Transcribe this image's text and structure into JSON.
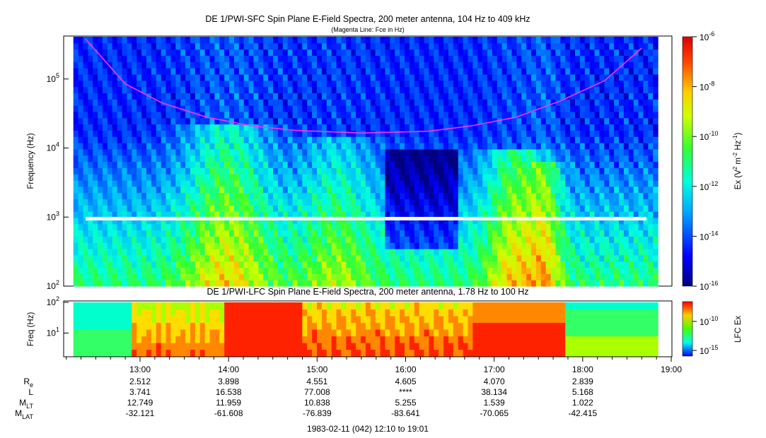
{
  "chart_data": [
    {
      "type": "heatmap",
      "panel": "SFC",
      "title": "DE 1/PWI-SFC  Spin Plane E-Field Spectra, 200 meter antenna, 104 Hz to 409 kHz",
      "subtitle": "(Magenta Line: Fce in Hz)",
      "ylabel": "Frequency (Hz)",
      "y_scale": "log",
      "ylim_hz": [
        100,
        409000
      ],
      "y_ticks": [
        {
          "value": 100,
          "base": "10",
          "exp": "2"
        },
        {
          "value": 1000,
          "base": "10",
          "exp": "3"
        },
        {
          "value": 10000,
          "base": "10",
          "exp": "4"
        },
        {
          "value": 100000,
          "base": "10",
          "exp": "5"
        }
      ],
      "colorbar": {
        "label_parts": [
          "Ex (V",
          "2",
          " m",
          "-2",
          " Hz",
          "-1",
          ")"
        ],
        "scale": "log",
        "range": [
          1e-16,
          1e-06
        ],
        "ticks": [
          {
            "value": 1e-06,
            "base": "10",
            "exp": "-6"
          },
          {
            "value": 1e-08,
            "base": "10",
            "exp": "-8"
          },
          {
            "value": 1e-10,
            "base": "10",
            "exp": "-10"
          },
          {
            "value": 1e-12,
            "base": "10",
            "exp": "-12"
          },
          {
            "value": 1e-14,
            "base": "10",
            "exp": "-14"
          },
          {
            "value": 1e-16,
            "base": "10",
            "exp": "-16"
          }
        ]
      },
      "fce_line": {
        "color": "#ff33ff",
        "points_hz": [
          {
            "t": "12:23",
            "f": 380000
          },
          {
            "t": "12:50",
            "f": 85000
          },
          {
            "t": "13:15",
            "f": 45000
          },
          {
            "t": "13:45",
            "f": 28000
          },
          {
            "t": "14:15",
            "f": 21000
          },
          {
            "t": "14:45",
            "f": 18000
          },
          {
            "t": "15:30",
            "f": 16500
          },
          {
            "t": "16:15",
            "f": 17500
          },
          {
            "t": "16:45",
            "f": 21000
          },
          {
            "t": "17:15",
            "f": 28000
          },
          {
            "t": "17:45",
            "f": 48000
          },
          {
            "t": "18:15",
            "f": 95000
          },
          {
            "t": "18:40",
            "f": 280000
          }
        ]
      }
    },
    {
      "type": "heatmap",
      "panel": "LFC",
      "title": "DE 1/PWI-LFC  Spin Plane E-Field Spectra, 200 meter antenna, 1.78 Hz to 100 Hz",
      "ylabel": "Freq (Hz)",
      "y_scale": "log",
      "ylim_hz": [
        1.78,
        100
      ],
      "y_ticks": [
        {
          "value": 10,
          "base": "10",
          "exp": "1"
        },
        {
          "value": 100,
          "base": "10",
          "exp": "2"
        }
      ],
      "colorbar": {
        "label": "LFC Ex",
        "scale": "log",
        "ticks": [
          {
            "value": 1e-10,
            "base": "10",
            "exp": "-10"
          },
          {
            "value": 1e-15,
            "base": "10",
            "exp": "-15"
          }
        ]
      }
    }
  ],
  "time_axis": {
    "start": "12:10",
    "end": "19:01",
    "tick_labels": [
      "13:00",
      "14:00",
      "15:00",
      "16:00",
      "17:00",
      "18:00",
      "19:00"
    ]
  },
  "ephemeris": {
    "rows": [
      {
        "label": "R",
        "sub": "e",
        "values": [
          "2.512",
          "3.898",
          "4.551",
          "4.605",
          "4.070",
          "2.839"
        ]
      },
      {
        "label": "L",
        "sub": "",
        "values": [
          "3.741",
          "16.538",
          "77.008",
          "****",
          "38.134",
          "5.168"
        ]
      },
      {
        "label": "M",
        "sub": "LT",
        "values": [
          "12.749",
          "11.959",
          "10.838",
          "5.255",
          "1.539",
          "1.022"
        ]
      },
      {
        "label": "M",
        "sub": "LAT",
        "values": [
          "-32.121",
          "-61.608",
          "-76.839",
          "-83.641",
          "-70.065",
          "-42.415"
        ]
      }
    ]
  },
  "footer": {
    "date_range": "1983-02-11 (042) 12:10 to 19:01"
  }
}
